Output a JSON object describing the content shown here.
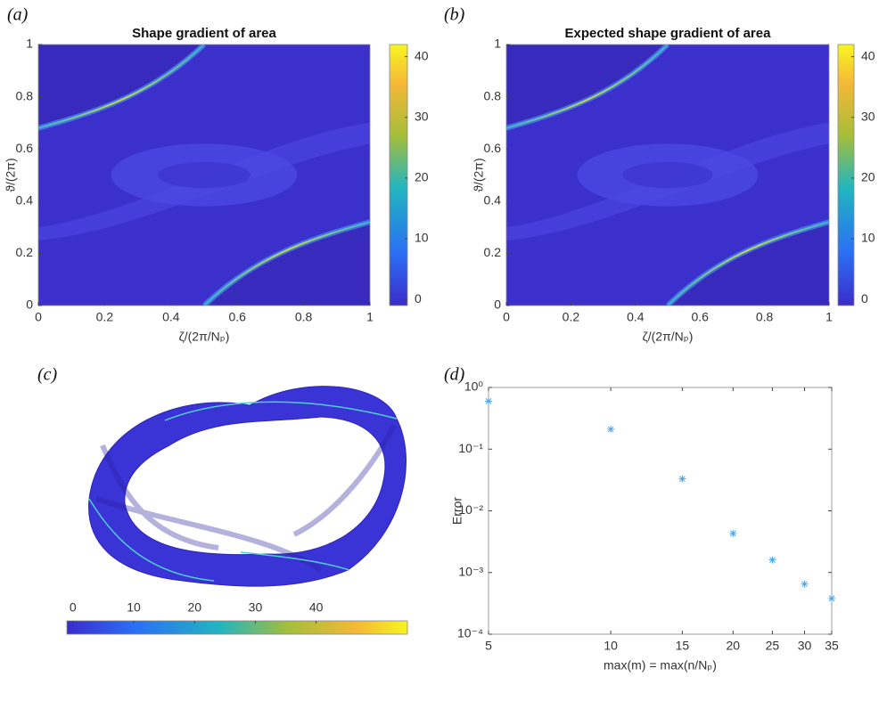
{
  "chart_data": [
    {
      "type": "heatmap",
      "panel": "(a)",
      "title": "Shape gradient of area",
      "xlabel": "ζ/(2π/Nₚ)",
      "ylabel": "ϑ/(2π)",
      "xlim": [
        0,
        1
      ],
      "xticks": [
        0,
        0.2,
        0.4,
        0.6,
        0.8,
        1
      ],
      "ylim": [
        0,
        1
      ],
      "yticks": [
        0,
        0.2,
        0.4,
        0.6,
        0.8,
        1
      ],
      "clim": [
        -1,
        42
      ],
      "cticks": [
        0,
        10,
        20,
        30,
        40
      ]
    },
    {
      "type": "heatmap",
      "panel": "(b)",
      "title": "Expected shape gradient of area",
      "xlabel": "ζ/(2π/Nₚ)",
      "ylabel": "ϑ/(2π)",
      "xlim": [
        0,
        1
      ],
      "xticks": [
        0,
        0.2,
        0.4,
        0.6,
        0.8,
        1
      ],
      "ylim": [
        0,
        1
      ],
      "yticks": [
        0,
        0.2,
        0.4,
        0.6,
        0.8,
        1
      ],
      "clim": [
        -1,
        42
      ],
      "cticks": [
        0,
        10,
        20,
        30,
        40
      ]
    },
    {
      "type": "surface",
      "panel": "(c)",
      "clim": [
        -1,
        55
      ],
      "cticks": [
        0,
        10,
        20,
        30,
        40
      ]
    },
    {
      "type": "scatter",
      "panel": "(d)",
      "xlabel": "max(m) = max(n/Nₚ)",
      "ylabel": "Error",
      "x": [
        5,
        10,
        15,
        20,
        25,
        30,
        35
      ],
      "y": [
        0.6,
        0.21,
        0.033,
        0.0043,
        0.0016,
        0.00065,
        0.00038
      ],
      "xlim": [
        5,
        35
      ],
      "ylim": [
        0.0001,
        1
      ],
      "xscale": "log",
      "yscale": "log",
      "color": "#4da6e8",
      "xticks": [
        5,
        10,
        15,
        20,
        25,
        30,
        35
      ],
      "yticks": [
        {
          "value": 0.0001,
          "label": "10⁻⁴"
        },
        {
          "value": 0.001,
          "label": "10⁻³"
        },
        {
          "value": 0.01,
          "label": "10⁻²"
        },
        {
          "value": 0.1,
          "label": "10⁻¹"
        },
        {
          "value": 1,
          "label": "10⁰"
        }
      ]
    }
  ]
}
